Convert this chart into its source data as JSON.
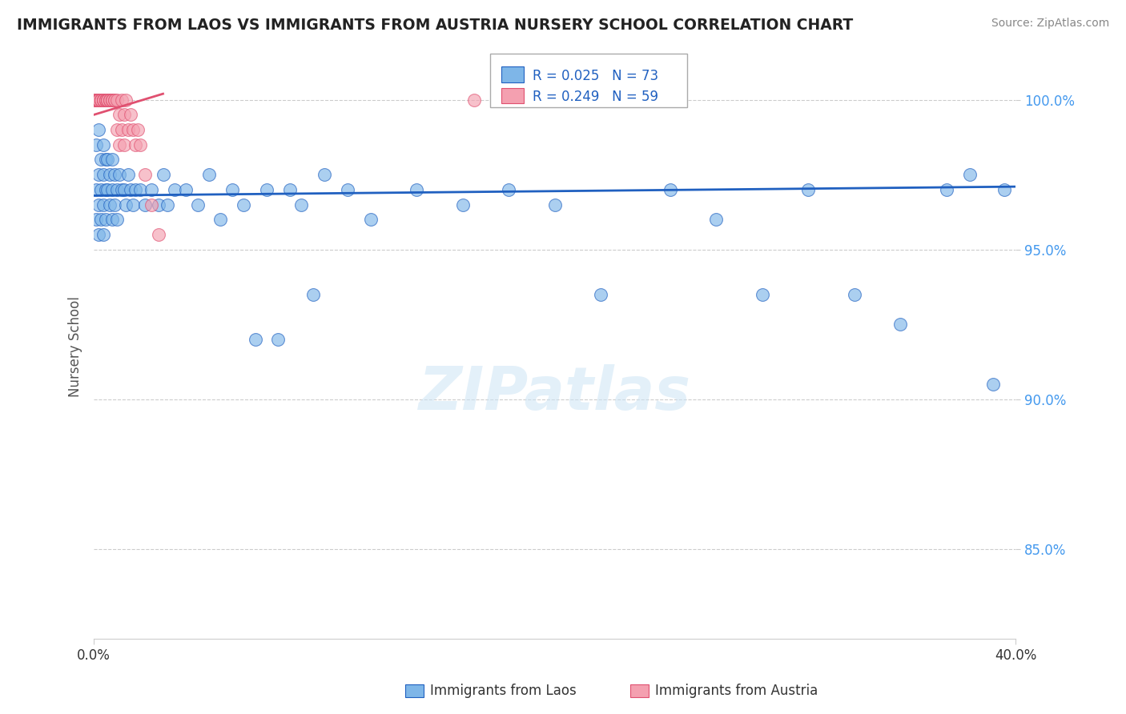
{
  "title": "IMMIGRANTS FROM LAOS VS IMMIGRANTS FROM AUSTRIA NURSERY SCHOOL CORRELATION CHART",
  "source": "Source: ZipAtlas.com",
  "ylabel": "Nursery School",
  "legend_laos": "Immigrants from Laos",
  "legend_austria": "Immigrants from Austria",
  "R_laos": "R = 0.025",
  "N_laos": "N = 73",
  "R_austria": "R = 0.249",
  "N_austria": "N = 59",
  "color_laos": "#7EB6E8",
  "color_austria": "#F4A0B0",
  "color_line_laos": "#2060C0",
  "color_line_austria": "#E05070",
  "color_legend_R": "#2060C0",
  "xmin": 0.0,
  "xmax": 0.4,
  "ymin": 82.0,
  "ymax": 101.5,
  "laos_x": [
    0.001,
    0.001,
    0.001,
    0.002,
    0.002,
    0.002,
    0.002,
    0.003,
    0.003,
    0.003,
    0.004,
    0.004,
    0.004,
    0.004,
    0.005,
    0.005,
    0.005,
    0.006,
    0.006,
    0.007,
    0.007,
    0.008,
    0.008,
    0.008,
    0.009,
    0.009,
    0.01,
    0.01,
    0.011,
    0.012,
    0.013,
    0.014,
    0.015,
    0.016,
    0.017,
    0.018,
    0.02,
    0.022,
    0.025,
    0.028,
    0.03,
    0.032,
    0.035,
    0.04,
    0.045,
    0.05,
    0.055,
    0.06,
    0.065,
    0.07,
    0.075,
    0.08,
    0.085,
    0.09,
    0.095,
    0.1,
    0.11,
    0.12,
    0.14,
    0.16,
    0.18,
    0.2,
    0.22,
    0.25,
    0.27,
    0.29,
    0.31,
    0.33,
    0.35,
    0.37,
    0.39,
    0.38,
    0.395
  ],
  "laos_y": [
    98.5,
    97.0,
    96.0,
    99.0,
    97.5,
    96.5,
    95.5,
    98.0,
    97.0,
    96.0,
    98.5,
    97.5,
    96.5,
    95.5,
    98.0,
    97.0,
    96.0,
    98.0,
    97.0,
    97.5,
    96.5,
    98.0,
    97.0,
    96.0,
    97.5,
    96.5,
    97.0,
    96.0,
    97.5,
    97.0,
    97.0,
    96.5,
    97.5,
    97.0,
    96.5,
    97.0,
    97.0,
    96.5,
    97.0,
    96.5,
    97.5,
    96.5,
    97.0,
    97.0,
    96.5,
    97.5,
    96.0,
    97.0,
    96.5,
    92.0,
    97.0,
    92.0,
    97.0,
    96.5,
    93.5,
    97.5,
    97.0,
    96.0,
    97.0,
    96.5,
    97.0,
    96.5,
    93.5,
    97.0,
    96.0,
    93.5,
    97.0,
    93.5,
    92.5,
    97.0,
    90.5,
    97.5,
    97.0
  ],
  "austria_x": [
    0.001,
    0.001,
    0.001,
    0.001,
    0.001,
    0.001,
    0.001,
    0.001,
    0.001,
    0.001,
    0.002,
    0.002,
    0.002,
    0.002,
    0.002,
    0.002,
    0.002,
    0.003,
    0.003,
    0.003,
    0.003,
    0.004,
    0.004,
    0.004,
    0.004,
    0.005,
    0.005,
    0.005,
    0.005,
    0.006,
    0.006,
    0.006,
    0.007,
    0.007,
    0.007,
    0.008,
    0.008,
    0.008,
    0.009,
    0.009,
    0.01,
    0.01,
    0.011,
    0.011,
    0.012,
    0.012,
    0.013,
    0.013,
    0.014,
    0.015,
    0.016,
    0.017,
    0.018,
    0.019,
    0.02,
    0.022,
    0.025,
    0.028,
    0.165
  ],
  "austria_y": [
    100.0,
    100.0,
    100.0,
    100.0,
    100.0,
    100.0,
    100.0,
    100.0,
    100.0,
    100.0,
    100.0,
    100.0,
    100.0,
    100.0,
    100.0,
    100.0,
    100.0,
    100.0,
    100.0,
    100.0,
    100.0,
    100.0,
    100.0,
    100.0,
    100.0,
    100.0,
    100.0,
    100.0,
    100.0,
    100.0,
    100.0,
    100.0,
    100.0,
    100.0,
    100.0,
    100.0,
    100.0,
    100.0,
    100.0,
    100.0,
    100.0,
    99.0,
    99.5,
    98.5,
    99.0,
    100.0,
    99.5,
    98.5,
    100.0,
    99.0,
    99.5,
    99.0,
    98.5,
    99.0,
    98.5,
    97.5,
    96.5,
    95.5,
    100.0
  ],
  "laos_trendline_x": [
    0.0,
    0.4
  ],
  "laos_trendline_y": [
    96.8,
    97.1
  ],
  "austria_trendline_x": [
    0.0,
    0.03
  ],
  "austria_trendline_y": [
    99.5,
    100.2
  ],
  "ytick_vals": [
    85.0,
    90.0,
    95.0,
    100.0
  ],
  "ytick_labels": [
    "85.0%",
    "90.0%",
    "95.0%",
    "100.0%"
  ]
}
